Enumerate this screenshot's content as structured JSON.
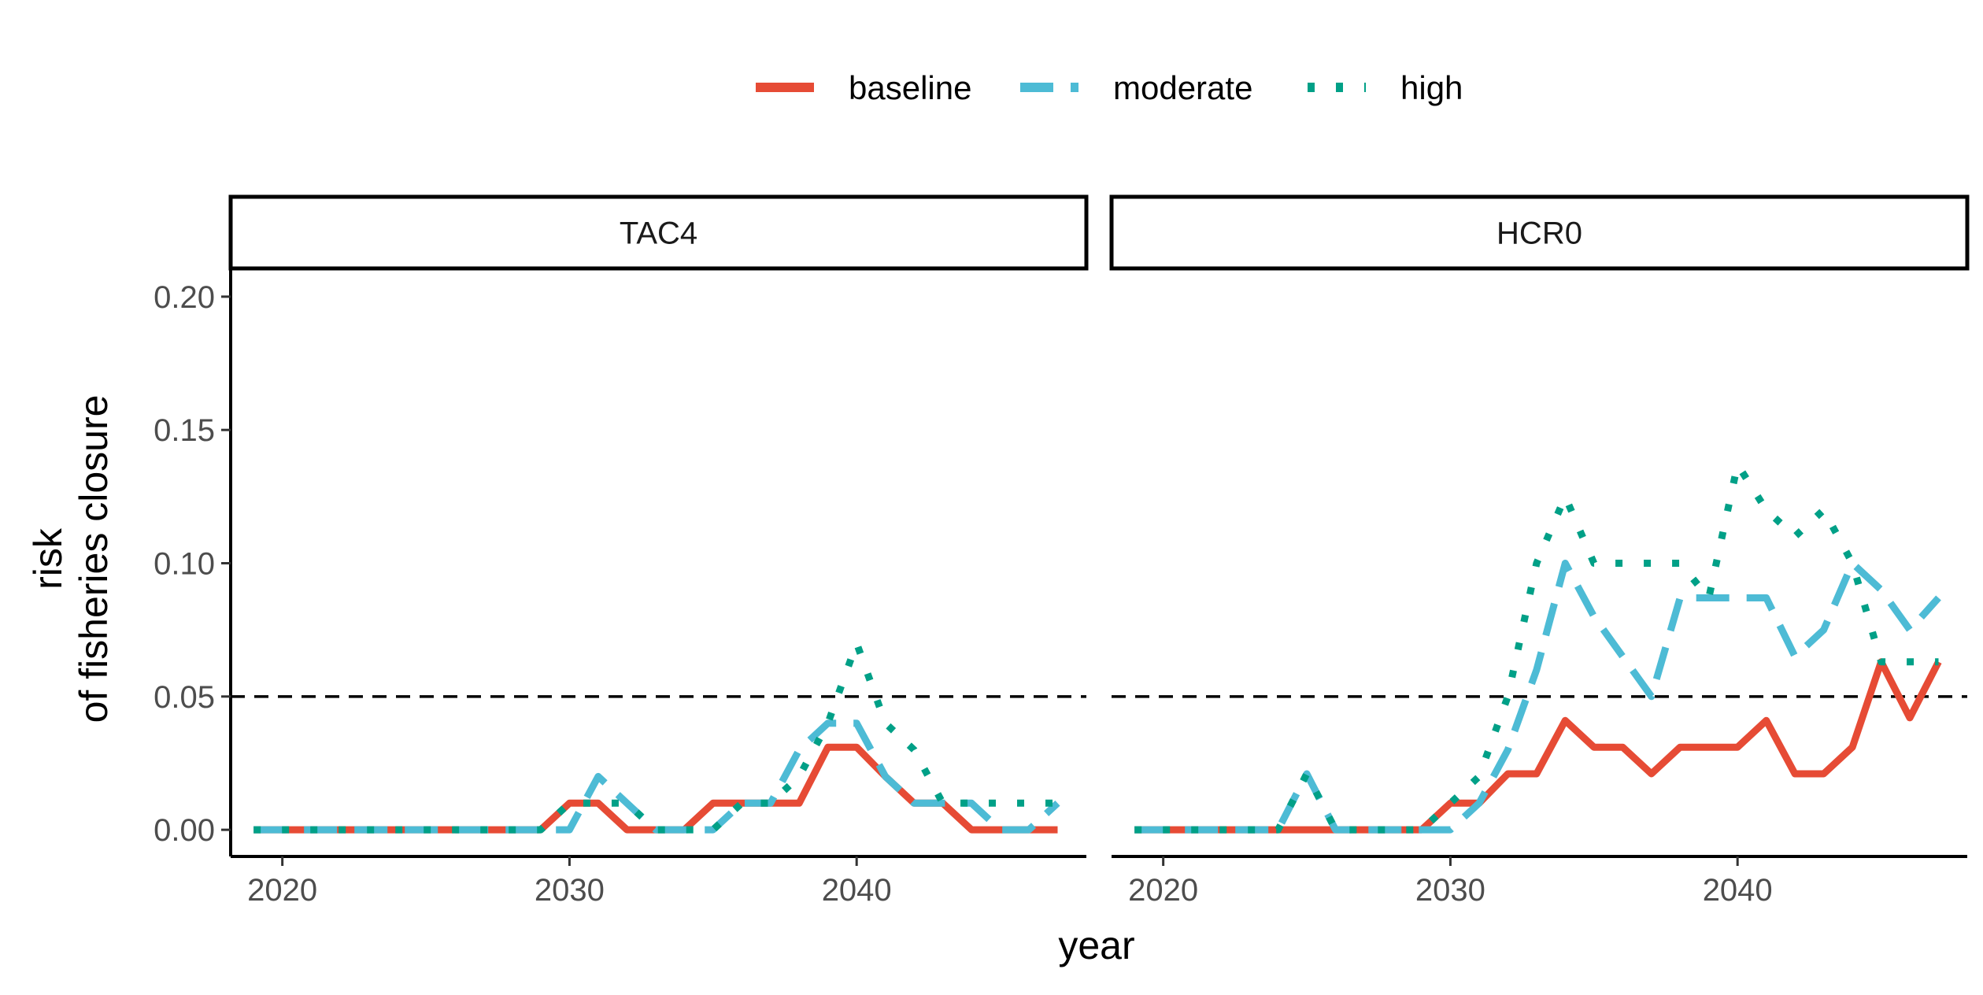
{
  "chart_data": {
    "type": "line",
    "x_label": "year",
    "y_label_lines": [
      "risk",
      "of fisheries closure"
    ],
    "x_ticks": [
      2020,
      2030,
      2040
    ],
    "y_ticks": [
      "0.00",
      "0.05",
      "0.10",
      "0.15",
      "0.20"
    ],
    "xlim": [
      2018.2,
      2048.0
    ],
    "ylim": [
      -0.01,
      0.21
    ],
    "threshold": 0.05,
    "legend_position": "top",
    "grid": false,
    "series_styles": [
      {
        "name": "baseline",
        "color": "#E64B35",
        "dash": "solid"
      },
      {
        "name": "moderate",
        "color": "#4DBBD5",
        "dash": "dashed"
      },
      {
        "name": "high",
        "color": "#00A087",
        "dash": "dotted"
      }
    ],
    "panels": [
      {
        "title": "TAC4",
        "x": [
          2019,
          2020,
          2021,
          2022,
          2023,
          2024,
          2025,
          2026,
          2027,
          2028,
          2029,
          2030,
          2031,
          2032,
          2033,
          2034,
          2035,
          2036,
          2037,
          2038,
          2039,
          2040,
          2041,
          2042,
          2043,
          2044,
          2045,
          2046,
          2047
        ],
        "series": [
          {
            "name": "baseline",
            "values": [
              0,
              0,
              0,
              0,
              0,
              0,
              0,
              0,
              0,
              0,
              0,
              0.01,
              0.01,
              0,
              0,
              0,
              0.01,
              0.01,
              0.01,
              0.01,
              0.031,
              0.031,
              0.02,
              0.01,
              0.01,
              0,
              0,
              0,
              0
            ]
          },
          {
            "name": "moderate",
            "values": [
              0,
              0,
              0,
              0,
              0,
              0,
              0,
              0,
              0,
              0,
              0,
              0,
              0.02,
              0.01,
              0,
              0,
              0,
              0.01,
              0.01,
              0.03,
              0.04,
              0.04,
              0.02,
              0.01,
              0.01,
              0.01,
              0,
              0,
              0.01
            ]
          },
          {
            "name": "high",
            "values": [
              0,
              0,
              0,
              0,
              0,
              0,
              0,
              0,
              0,
              0,
              0,
              0.01,
              0.01,
              0.01,
              0,
              0,
              0,
              0.01,
              0.01,
              0.02,
              0.04,
              0.07,
              0.04,
              0.03,
              0.01,
              0.01,
              0.01,
              0.01,
              0.01
            ]
          }
        ]
      },
      {
        "title": "HCR0",
        "x": [
          2019,
          2020,
          2021,
          2022,
          2023,
          2024,
          2025,
          2026,
          2027,
          2028,
          2029,
          2030,
          2031,
          2032,
          2033,
          2034,
          2035,
          2036,
          2037,
          2038,
          2039,
          2040,
          2041,
          2042,
          2043,
          2044,
          2045,
          2046,
          2047
        ],
        "series": [
          {
            "name": "baseline",
            "values": [
              0,
              0,
              0,
              0,
              0,
              0,
              0,
              0,
              0,
              0,
              0,
              0.01,
              0.01,
              0.021,
              0.021,
              0.041,
              0.031,
              0.031,
              0.021,
              0.031,
              0.031,
              0.031,
              0.041,
              0.021,
              0.021,
              0.031,
              0.063,
              0.042,
              0.063
            ]
          },
          {
            "name": "moderate",
            "values": [
              0,
              0,
              0,
              0,
              0,
              0,
              0.021,
              0,
              0,
              0,
              0,
              0,
              0.01,
              0.03,
              0.06,
              0.1,
              0.08,
              0.065,
              0.05,
              0.087,
              0.087,
              0.087,
              0.087,
              0.065,
              0.075,
              0.1,
              0.09,
              0.075,
              0.087
            ]
          },
          {
            "name": "high",
            "values": [
              0,
              0,
              0,
              0,
              0,
              0,
              0.021,
              0,
              0,
              0,
              0,
              0.01,
              0.02,
              0.05,
              0.1,
              0.125,
              0.1,
              0.1,
              0.1,
              0.1,
              0.087,
              0.137,
              0.12,
              0.11,
              0.12,
              0.1,
              0.063,
              0.063,
              0.063
            ]
          }
        ]
      }
    ]
  }
}
